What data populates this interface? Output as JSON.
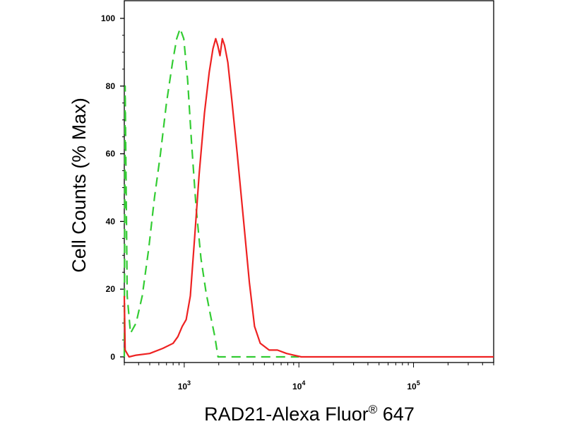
{
  "chart_data": {
    "type": "line",
    "xlabel": "RAD21-Alexa Fluor",
    "xlabel_superscript": "®",
    "xlabel_suffix": " 647",
    "ylabel": "Cell Counts (% Max)",
    "x_scale": "log",
    "xlim": [
      300,
      500000
    ],
    "ylim": [
      0,
      100
    ],
    "y_ticks": [
      0,
      20,
      40,
      60,
      80,
      100
    ],
    "y_tick_labels": [
      "0",
      "20",
      "40",
      "60",
      "80",
      "100"
    ],
    "x_ticks": [
      1000,
      10000,
      100000
    ],
    "x_tick_labels": [
      {
        "base": "10",
        "exp": "3"
      },
      {
        "base": "10",
        "exp": "4"
      },
      {
        "base": "10",
        "exp": "5"
      }
    ],
    "grid": false,
    "series": [
      {
        "color": "#33cc33",
        "style": "dashed",
        "points": [
          [
            300,
            0
          ],
          [
            305,
            80
          ],
          [
            318,
            18
          ],
          [
            340,
            7
          ],
          [
            380,
            10
          ],
          [
            430,
            18
          ],
          [
            490,
            32
          ],
          [
            550,
            47
          ],
          [
            620,
            60
          ],
          [
            700,
            75
          ],
          [
            790,
            87
          ],
          [
            860,
            94
          ],
          [
            920,
            97
          ],
          [
            990,
            94
          ],
          [
            1070,
            82
          ],
          [
            1160,
            63
          ],
          [
            1270,
            44
          ],
          [
            1400,
            29
          ],
          [
            1550,
            19
          ],
          [
            1700,
            12
          ],
          [
            1850,
            6
          ],
          [
            1970,
            0
          ],
          [
            10000,
            0
          ]
        ]
      },
      {
        "color": "#ee2222",
        "style": "solid",
        "points": [
          [
            300,
            18
          ],
          [
            305,
            2
          ],
          [
            330,
            0
          ],
          [
            380,
            0.5
          ],
          [
            500,
            1
          ],
          [
            650,
            2.5
          ],
          [
            800,
            4
          ],
          [
            880,
            6
          ],
          [
            960,
            9
          ],
          [
            1040,
            11
          ],
          [
            1130,
            18
          ],
          [
            1230,
            35
          ],
          [
            1350,
            54
          ],
          [
            1500,
            72
          ],
          [
            1650,
            84
          ],
          [
            1780,
            91
          ],
          [
            1880,
            94
          ],
          [
            1960,
            92
          ],
          [
            2050,
            89
          ],
          [
            2150,
            94
          ],
          [
            2250,
            92
          ],
          [
            2400,
            87
          ],
          [
            2600,
            76
          ],
          [
            2900,
            60
          ],
          [
            3300,
            40
          ],
          [
            3700,
            22
          ],
          [
            4100,
            9
          ],
          [
            4600,
            4
          ],
          [
            5500,
            2
          ],
          [
            6500,
            2
          ],
          [
            7800,
            1
          ],
          [
            9000,
            0.5
          ],
          [
            10500,
            0
          ],
          [
            500000,
            0
          ]
        ]
      }
    ]
  }
}
